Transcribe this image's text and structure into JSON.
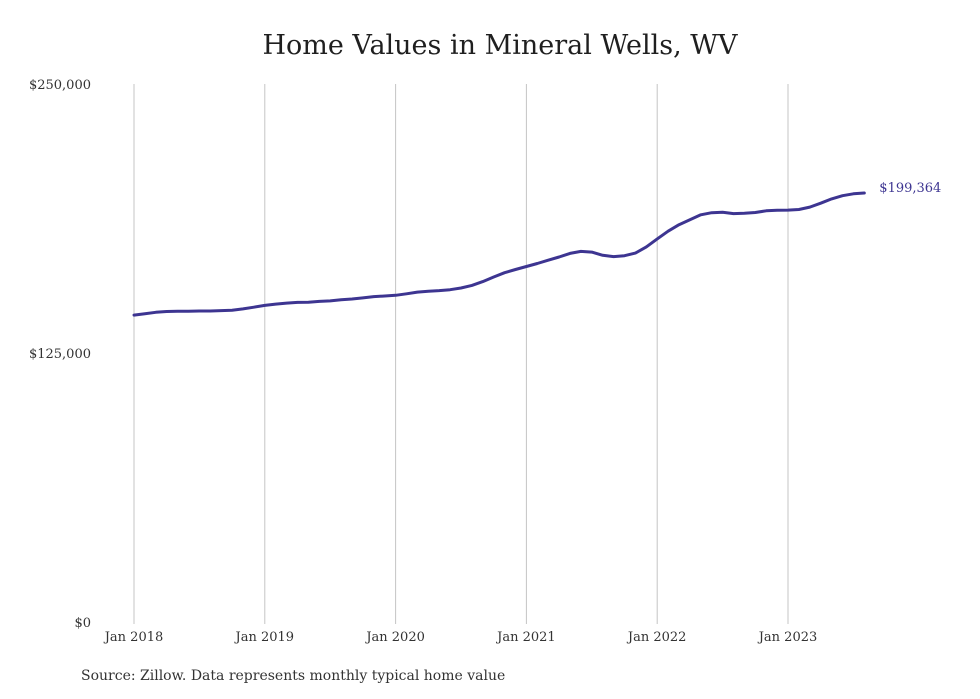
{
  "chart_data": {
    "type": "line",
    "title": "Home Values in Mineral Wells, WV",
    "xlabel": "",
    "ylabel": "",
    "x_tick_labels": [
      "Jan 2018",
      "Jan 2019",
      "Jan 2020",
      "Jan 2021",
      "Jan 2022",
      "Jan 2023"
    ],
    "y_tick_labels": [
      "$250,000",
      "$125,000",
      "$0"
    ],
    "y_ticks": [
      250000,
      125000,
      0
    ],
    "ylim": [
      0,
      250000
    ],
    "grid": "vertical",
    "series": [
      {
        "color": "#3d3591",
        "end_label": "$199,364",
        "points": [
          [
            "2018-01",
            142600
          ],
          [
            "2018-02",
            143200
          ],
          [
            "2018-03",
            143900
          ],
          [
            "2018-04",
            144300
          ],
          [
            "2018-05",
            144400
          ],
          [
            "2018-06",
            144400
          ],
          [
            "2018-07",
            144500
          ],
          [
            "2018-08",
            144500
          ],
          [
            "2018-09",
            144700
          ],
          [
            "2018-10",
            144900
          ],
          [
            "2018-11",
            145500
          ],
          [
            "2018-12",
            146300
          ],
          [
            "2019-01",
            147100
          ],
          [
            "2019-02",
            147700
          ],
          [
            "2019-03",
            148200
          ],
          [
            "2019-04",
            148500
          ],
          [
            "2019-05",
            148600
          ],
          [
            "2019-06",
            149000
          ],
          [
            "2019-07",
            149200
          ],
          [
            "2019-08",
            149700
          ],
          [
            "2019-09",
            150100
          ],
          [
            "2019-10",
            150600
          ],
          [
            "2019-11",
            151200
          ],
          [
            "2019-12",
            151500
          ],
          [
            "2020-01",
            151800
          ],
          [
            "2020-02",
            152500
          ],
          [
            "2020-03",
            153300
          ],
          [
            "2020-04",
            153700
          ],
          [
            "2020-05",
            154000
          ],
          [
            "2020-06",
            154400
          ],
          [
            "2020-07",
            155200
          ],
          [
            "2020-08",
            156400
          ],
          [
            "2020-09",
            158200
          ],
          [
            "2020-10",
            160300
          ],
          [
            "2020-11",
            162300
          ],
          [
            "2020-12",
            163800
          ],
          [
            "2021-01",
            165200
          ],
          [
            "2021-02",
            166600
          ],
          [
            "2021-03",
            168100
          ],
          [
            "2021-04",
            169600
          ],
          [
            "2021-05",
            171300
          ],
          [
            "2021-06",
            172200
          ],
          [
            "2021-07",
            171900
          ],
          [
            "2021-08",
            170400
          ],
          [
            "2021-09",
            169800
          ],
          [
            "2021-10",
            170200
          ],
          [
            "2021-11",
            171400
          ],
          [
            "2021-12",
            174300
          ],
          [
            "2022-01",
            178000
          ],
          [
            "2022-02",
            181600
          ],
          [
            "2022-03",
            184600
          ],
          [
            "2022-04",
            186900
          ],
          [
            "2022-05",
            189200
          ],
          [
            "2022-06",
            190200
          ],
          [
            "2022-07",
            190400
          ],
          [
            "2022-08",
            189800
          ],
          [
            "2022-09",
            189900
          ],
          [
            "2022-10",
            190300
          ],
          [
            "2022-11",
            191100
          ],
          [
            "2022-12",
            191300
          ],
          [
            "2023-01",
            191400
          ],
          [
            "2023-02",
            191700
          ],
          [
            "2023-03",
            192800
          ],
          [
            "2023-04",
            194600
          ],
          [
            "2023-05",
            196600
          ],
          [
            "2023-06",
            198100
          ],
          [
            "2023-07",
            199000
          ],
          [
            "2023-08",
            199364
          ]
        ]
      }
    ]
  },
  "source": "Source: Zillow. Data represents monthly typical home value"
}
